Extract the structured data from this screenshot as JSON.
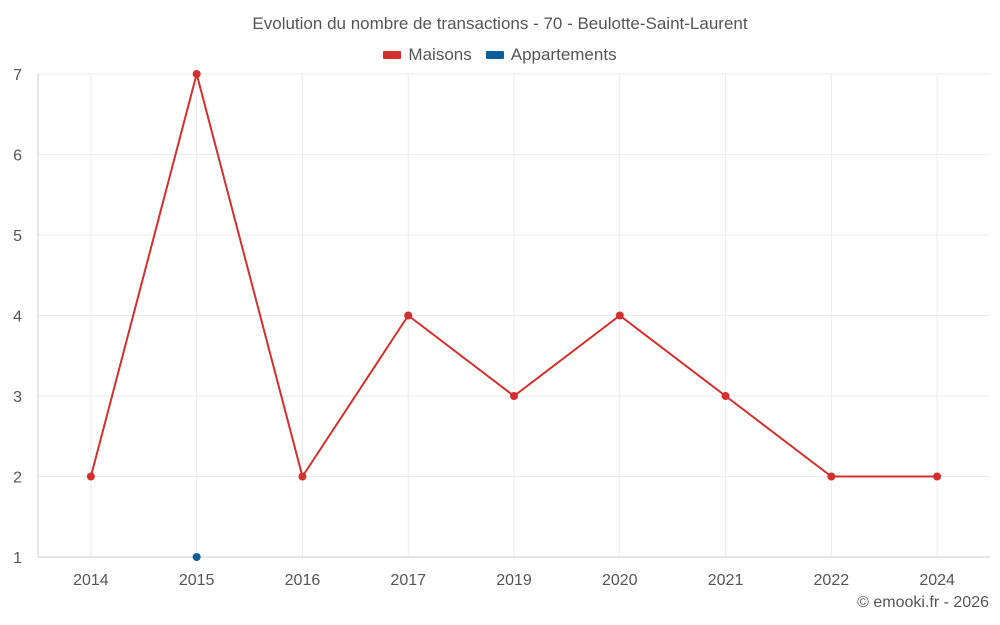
{
  "chart_data": {
    "type": "line",
    "title": "Evolution du nombre de transactions - 70 - Beulotte-Saint-Laurent",
    "categories": [
      "2014",
      "2015",
      "2016",
      "2017",
      "2019",
      "2020",
      "2021",
      "2022",
      "2024"
    ],
    "series": [
      {
        "name": "Maisons",
        "color": "#d32f2f",
        "values": [
          2,
          7,
          2,
          4,
          3,
          4,
          3,
          2,
          2
        ]
      },
      {
        "name": "Appartements",
        "color": "#0b5f99",
        "values": [
          null,
          1,
          null,
          null,
          null,
          null,
          null,
          null,
          null
        ]
      }
    ],
    "y_ticks": [
      1,
      2,
      3,
      4,
      5,
      6,
      7
    ],
    "ylim": [
      1,
      7
    ],
    "grid": true,
    "legend_position": "top-center"
  },
  "credit": "© emooki.fr - 2026"
}
